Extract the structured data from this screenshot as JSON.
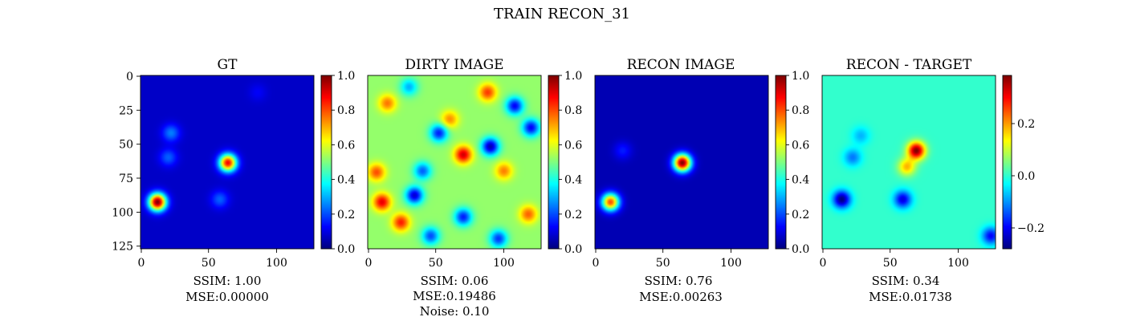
{
  "suptitle": "TRAIN RECON_31",
  "colormap": "jet",
  "colors": {
    "jet_low": "#00007f",
    "jet_mid": "#7fff7f",
    "jet_high": "#7f0000",
    "background": "#ffffff",
    "text": "#000000"
  },
  "chart_data": [
    {
      "type": "heatmap",
      "title": "GT",
      "xlim": [
        0,
        127
      ],
      "ylim": [
        127,
        0
      ],
      "xticks": [
        "0",
        "50",
        "100"
      ],
      "yticks": [
        "0",
        "25",
        "50",
        "75",
        "100",
        "125"
      ],
      "colorbar": {
        "range": [
          0.0,
          1.0
        ],
        "ticks": [
          "0.0",
          "0.2",
          "0.4",
          "0.6",
          "0.8",
          "1.0"
        ]
      },
      "background_level": 0.07,
      "sources": [
        {
          "x": 12,
          "y": 93,
          "peak": 1.0
        },
        {
          "x": 64,
          "y": 64,
          "peak": 0.88
        },
        {
          "x": 22,
          "y": 42,
          "peak": 0.25
        },
        {
          "x": 20,
          "y": 60,
          "peak": 0.22
        },
        {
          "x": 58,
          "y": 91,
          "peak": 0.22
        },
        {
          "x": 86,
          "y": 12,
          "peak": 0.12
        }
      ],
      "caption": [
        "SSIM: 1.00",
        "MSE:0.00000"
      ]
    },
    {
      "type": "heatmap",
      "title": "DIRTY IMAGE",
      "xlim": [
        0,
        127
      ],
      "ylim": [
        127,
        0
      ],
      "xticks": [
        "0",
        "50",
        "100"
      ],
      "colorbar": {
        "range": [
          0.0,
          1.0
        ],
        "ticks": [
          "0.0",
          "0.2",
          "0.4",
          "0.6",
          "0.8",
          "1.0"
        ]
      },
      "background_level": 0.52,
      "sources": [
        {
          "x": 70,
          "y": 58,
          "peak": 0.92
        },
        {
          "x": 10,
          "y": 93,
          "peak": 0.9
        },
        {
          "x": 24,
          "y": 108,
          "peak": 0.85
        },
        {
          "x": 88,
          "y": 12,
          "peak": 0.82
        },
        {
          "x": 6,
          "y": 71,
          "peak": 0.8
        },
        {
          "x": 118,
          "y": 102,
          "peak": 0.78
        },
        {
          "x": 14,
          "y": 20,
          "peak": 0.76
        },
        {
          "x": 60,
          "y": 32,
          "peak": 0.74
        },
        {
          "x": 100,
          "y": 70,
          "peak": 0.75
        },
        {
          "x": 40,
          "y": 70,
          "peak": 0.22
        },
        {
          "x": 90,
          "y": 52,
          "peak": 0.05
        },
        {
          "x": 108,
          "y": 22,
          "peak": 0.12
        },
        {
          "x": 52,
          "y": 42,
          "peak": 0.15
        },
        {
          "x": 34,
          "y": 88,
          "peak": 0.08
        },
        {
          "x": 70,
          "y": 104,
          "peak": 0.15
        },
        {
          "x": 120,
          "y": 38,
          "peak": 0.12
        },
        {
          "x": 46,
          "y": 118,
          "peak": 0.2
        },
        {
          "x": 96,
          "y": 120,
          "peak": 0.18
        },
        {
          "x": 30,
          "y": 8,
          "peak": 0.3
        }
      ],
      "caption": [
        "SSIM: 0.06",
        "MSE:0.19486",
        "Noise: 0.10"
      ]
    },
    {
      "type": "heatmap",
      "title": "RECON IMAGE",
      "xlim": [
        0,
        127
      ],
      "ylim": [
        127,
        0
      ],
      "xticks": [
        "0",
        "50",
        "100"
      ],
      "colorbar": {
        "range": [
          0.0,
          1.0
        ],
        "ticks": [
          "0.0",
          "0.2",
          "0.4",
          "0.6",
          "0.8",
          "1.0"
        ]
      },
      "background_level": 0.05,
      "sources": [
        {
          "x": 64,
          "y": 64,
          "peak": 1.0
        },
        {
          "x": 11,
          "y": 93,
          "peak": 0.8
        },
        {
          "x": 20,
          "y": 55,
          "peak": 0.15
        }
      ],
      "caption": [
        "SSIM: 0.76",
        "MSE:0.00263"
      ]
    },
    {
      "type": "heatmap",
      "title": "RECON - TARGET",
      "xlim": [
        0,
        127
      ],
      "ylim": [
        127,
        0
      ],
      "xticks": [
        "0",
        "50",
        "100"
      ],
      "colorbar": {
        "range": [
          -0.28,
          0.38
        ],
        "ticks": [
          "−0.2",
          "0.0",
          "0.2"
        ],
        "tick_values": [
          -0.2,
          0.0,
          0.2
        ]
      },
      "background_level": 0.0,
      "sources": [
        {
          "x": 69,
          "y": 55,
          "peak": 0.38
        },
        {
          "x": 62,
          "y": 67,
          "peak": 0.18
        },
        {
          "x": 14,
          "y": 91,
          "peak": -0.28
        },
        {
          "x": 59,
          "y": 91,
          "peak": -0.22
        },
        {
          "x": 22,
          "y": 60,
          "peak": -0.12
        },
        {
          "x": 124,
          "y": 118,
          "peak": -0.2
        },
        {
          "x": 28,
          "y": 44,
          "peak": -0.08
        }
      ],
      "caption": [
        "SSIM: 0.34",
        "MSE:0.01738"
      ]
    }
  ]
}
